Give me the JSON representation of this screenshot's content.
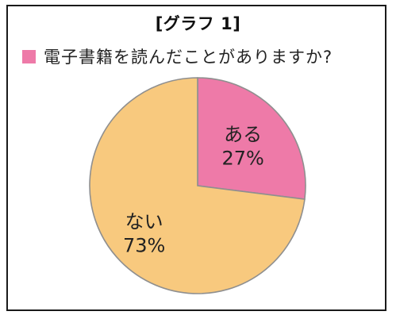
{
  "chart_data": {
    "type": "pie",
    "title": "[グラフ 1]",
    "legend": {
      "label": "電子書籍を読んだことがありますか?",
      "placement": "top-left"
    },
    "slices": [
      {
        "label": "ある",
        "value": 27,
        "value_label": "27%",
        "color": "#ee7aa8"
      },
      {
        "label": "ない",
        "value": 73,
        "value_label": "73%",
        "color": "#f8c97e"
      }
    ],
    "unit": "%"
  }
}
